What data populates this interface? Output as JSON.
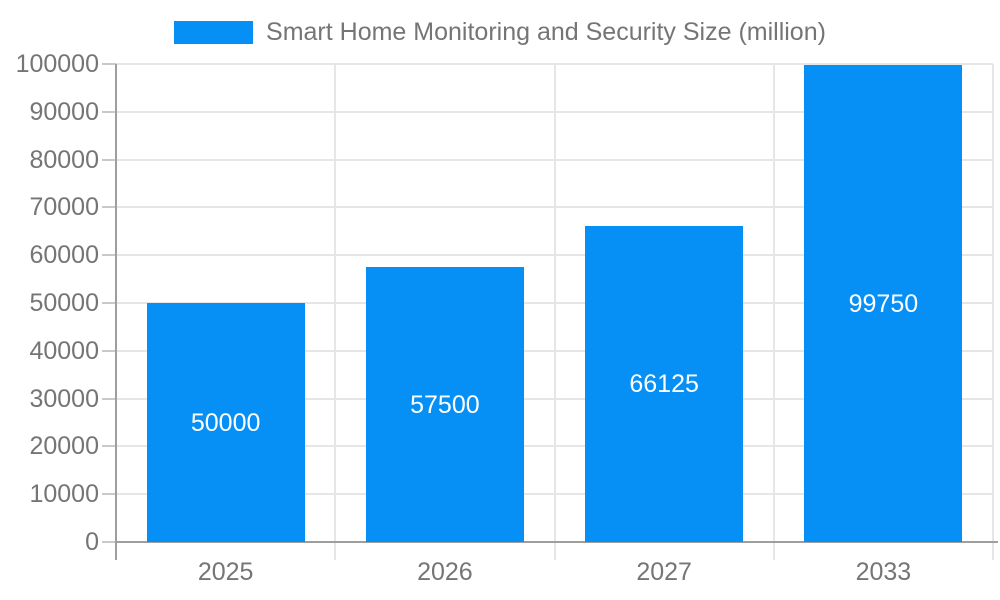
{
  "chart_data": {
    "type": "bar",
    "title": "Smart Home Monitoring and Security Size (million)",
    "legend": {
      "label": "Smart Home Monitoring and Security Size (million)",
      "position": "top"
    },
    "categories": [
      "2025",
      "2026",
      "2027",
      "2033"
    ],
    "values": [
      50000,
      57500,
      66125,
      99750
    ],
    "bar_labels": [
      "50000",
      "57500",
      "66125",
      "99750"
    ],
    "xlabel": "",
    "ylabel": "",
    "ylim": [
      0,
      100000
    ],
    "ytick_step": 10000,
    "ytick_labels": [
      "0",
      "10000",
      "20000",
      "30000",
      "40000",
      "50000",
      "60000",
      "70000",
      "80000",
      "90000",
      "100000"
    ],
    "grid": true,
    "legend_position": "top-center",
    "colors": {
      "bar": "#0690F6",
      "gridline": "#e6e6e6",
      "axis_line": "#9e9e9e",
      "tick": "#c9c9c9",
      "label_text": "#757575",
      "bar_label_text": "#ffffff",
      "background": "#ffffff"
    }
  }
}
